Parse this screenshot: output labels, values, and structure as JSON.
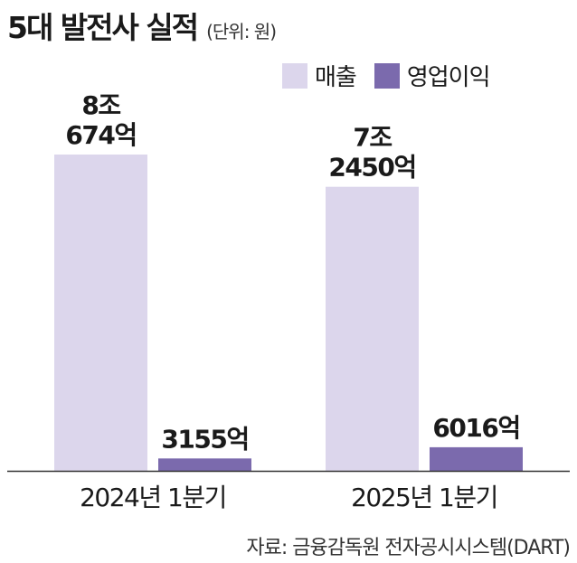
{
  "title": "5대 발전사 실적",
  "unit": "(단위: 원)",
  "source": "자료: 금융감독원 전자공시시스템(DART)",
  "colors": {
    "revenue": "#dcd6ec",
    "operating_profit": "#7b6aad",
    "axis": "#333333"
  },
  "chart_data": {
    "type": "bar",
    "categories": [
      "2024년 1분기",
      "2025년 1분기"
    ],
    "series": [
      {
        "name": "매출",
        "values": [
          80674,
          72450
        ],
        "unit": "억원",
        "labels": [
          [
            "8조",
            "674억"
          ],
          [
            "7조",
            "2450억"
          ]
        ]
      },
      {
        "name": "영업이익",
        "values": [
          3155,
          6016
        ],
        "unit": "억원",
        "labels": [
          [
            "3155억"
          ],
          [
            "6016억"
          ]
        ]
      }
    ],
    "legend": "top-right",
    "grid": false
  }
}
